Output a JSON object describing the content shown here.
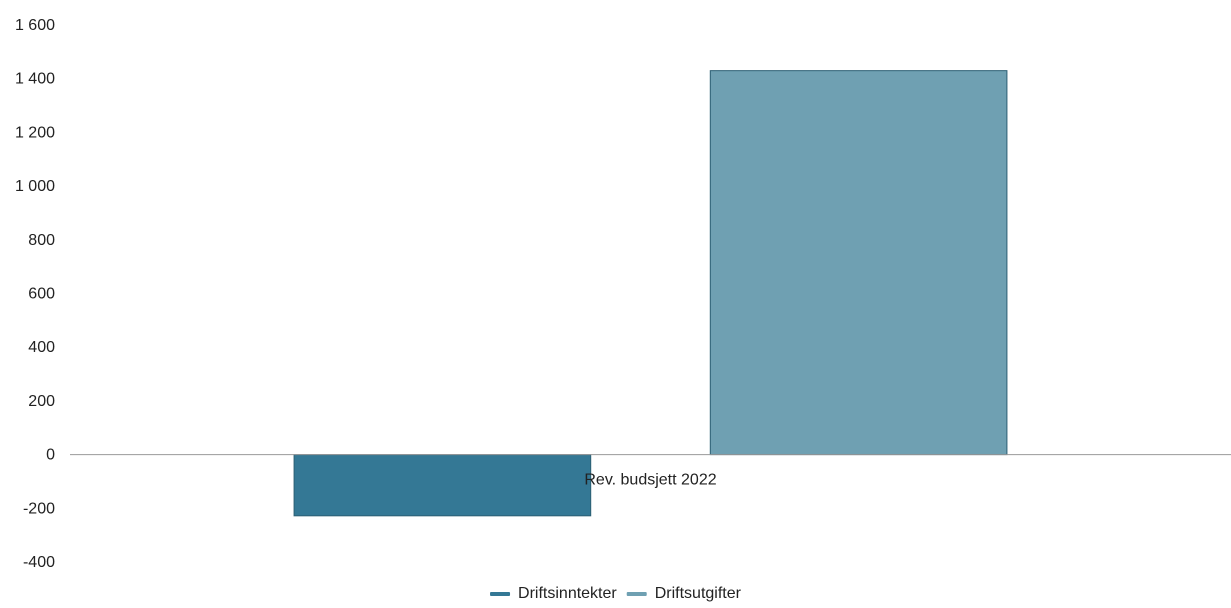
{
  "chart_data": {
    "type": "bar",
    "categories": [
      "Rev. budsjett 2022"
    ],
    "series": [
      {
        "name": "Driftsinntekter",
        "values": [
          -228
        ],
        "color": "#347895"
      },
      {
        "name": "Driftsutgifter",
        "values": [
          1430
        ],
        "color": "#6fa0b2"
      }
    ],
    "ylim": [
      -400,
      1600
    ],
    "yticks": [
      1600,
      1400,
      1200,
      1000,
      800,
      600,
      400,
      200,
      0,
      -200,
      -400
    ],
    "ytick_labels": [
      "1 600",
      "1 400",
      "1 200",
      "1 000",
      "800",
      "600",
      "400",
      "200",
      "0",
      "-200",
      "-400"
    ],
    "grid": false,
    "legend_position": "bottom"
  }
}
